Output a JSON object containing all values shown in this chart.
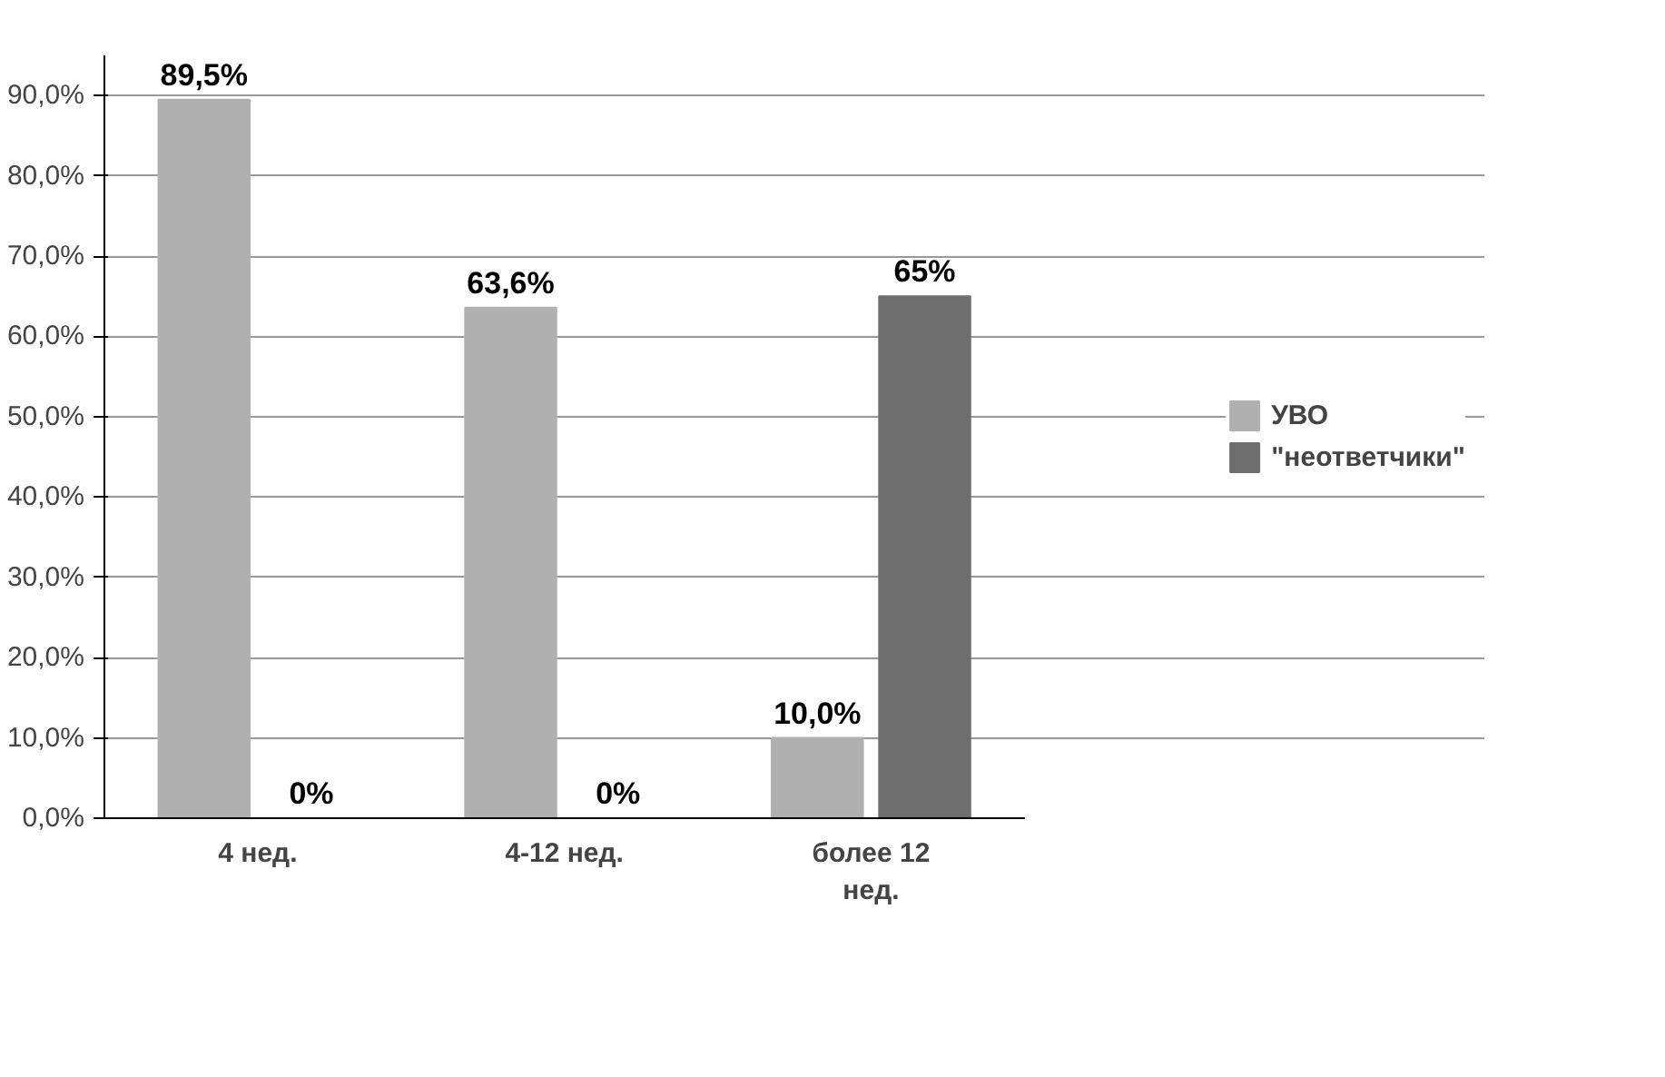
{
  "chart_data": {
    "type": "bar",
    "categories": [
      "4 нед.",
      "4-12 нед.",
      "более 12 нед."
    ],
    "series": [
      {
        "name": "УВО",
        "color": "#b0b0b0",
        "values": [
          89.5,
          63.6,
          10.0
        ],
        "value_labels": [
          "89,5%",
          "63,6%",
          "10,0%"
        ]
      },
      {
        "name": "\"неответчики\"",
        "color": "#6e6e6e",
        "values": [
          0,
          0,
          65
        ],
        "value_labels": [
          "0%",
          "0%",
          "65%"
        ]
      }
    ],
    "ylim": [
      0,
      95
    ],
    "yticks": [
      {
        "value": 0,
        "label": "0,0%"
      },
      {
        "value": 10,
        "label": "10,0%"
      },
      {
        "value": 20,
        "label": "20,0%"
      },
      {
        "value": 30,
        "label": "30,0%"
      },
      {
        "value": 40,
        "label": "40,0%"
      },
      {
        "value": 50,
        "label": "50,0%"
      },
      {
        "value": 60,
        "label": "60,0%"
      },
      {
        "value": 70,
        "label": "70,0%"
      },
      {
        "value": 80,
        "label": "80,0%"
      },
      {
        "value": 90,
        "label": "90,0%"
      }
    ],
    "grid": "y",
    "legend": "right"
  }
}
